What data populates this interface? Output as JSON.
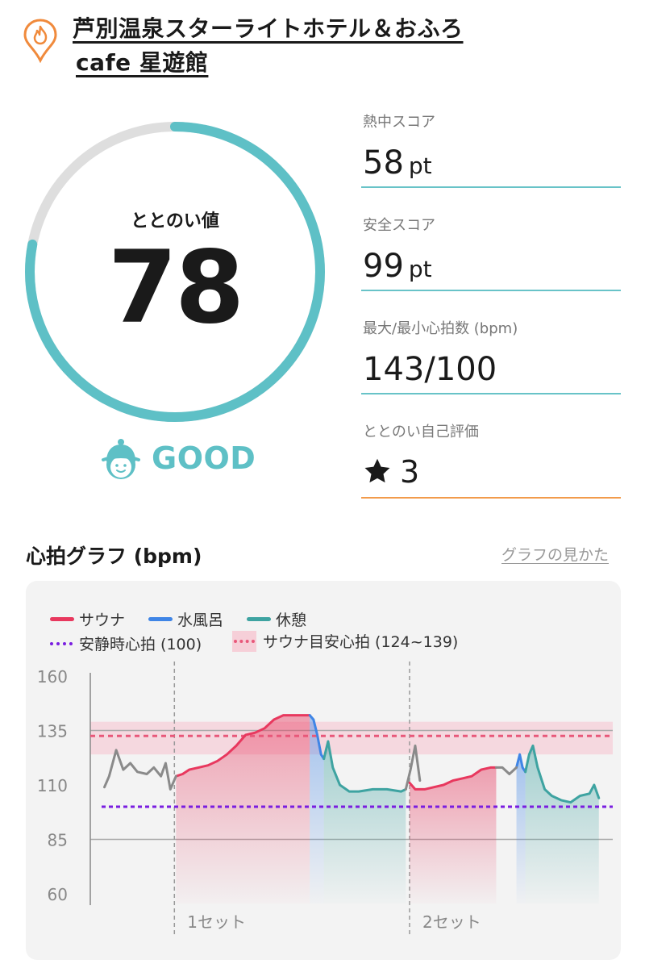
{
  "header": {
    "facility_icon": "flame-pin-icon",
    "name_line1": "芦別温泉スターライトホテル＆おふろ",
    "name_line2": "cafe 星遊館"
  },
  "score": {
    "label": "ととのい値",
    "value": "78",
    "progress_fraction": 0.78,
    "status_icon": "baby-face-icon",
    "status_text": "GOOD",
    "accent_color": "#5ec0c6"
  },
  "stats": [
    {
      "label": "熱中スコア",
      "value": "58",
      "unit": "pt"
    },
    {
      "label": "安全スコア",
      "value": "99",
      "unit": "pt"
    },
    {
      "label": "最大/最小心拍数 (bpm)",
      "value": "143/100",
      "unit": ""
    },
    {
      "label": "ととのい自己評価",
      "value": "3",
      "unit": "",
      "icon": "star-icon"
    }
  ],
  "graph": {
    "title": "心拍グラフ (bpm)",
    "help_link": "グラフの見かた",
    "legend": {
      "sauna": "サウナ",
      "water": "水風呂",
      "rest": "休憩",
      "resting_hr": "安静時心拍 (100)",
      "target_hr": "サウナ目安心拍 (124~139)"
    },
    "colors": {
      "sauna": "#e8385e",
      "water": "#3f85e6",
      "rest": "#3ea3a1",
      "pre": "#8a8a8a",
      "resting": "#7a1ee0",
      "target": "#e8587a"
    }
  },
  "chart_data": {
    "type": "line",
    "y_ticks": [
      "160",
      "135",
      "110",
      "85",
      "60"
    ],
    "ylim": [
      60,
      160
    ],
    "x_labels": [
      "1セット",
      "2セット"
    ],
    "resting_hr": 100,
    "target_range": [
      124,
      139
    ],
    "series": [
      {
        "name": "サウナ",
        "segments": [
          [
            [
              0.182,
              114
            ],
            [
              0.196,
              115
            ],
            [
              0.21,
              117
            ],
            [
              0.23,
              118
            ],
            [
              0.25,
              119
            ],
            [
              0.27,
              121
            ],
            [
              0.29,
              124
            ],
            [
              0.31,
              128
            ],
            [
              0.33,
              133
            ],
            [
              0.35,
              134
            ],
            [
              0.37,
              136
            ],
            [
              0.39,
              140
            ],
            [
              0.41,
              142
            ],
            [
              0.43,
              142
            ],
            [
              0.45,
              142
            ],
            [
              0.466,
              142
            ]
          ],
          [
            [
              0.678,
              111
            ],
            [
              0.69,
              108
            ],
            [
              0.71,
              108
            ],
            [
              0.73,
              109
            ],
            [
              0.75,
              110
            ],
            [
              0.77,
              112
            ],
            [
              0.79,
              113
            ],
            [
              0.81,
              114
            ],
            [
              0.83,
              117
            ],
            [
              0.85,
              118
            ],
            [
              0.862,
              118
            ]
          ]
        ]
      },
      {
        "name": "水風呂",
        "segments": [
          [
            [
              0.466,
              142
            ],
            [
              0.474,
              140
            ],
            [
              0.482,
              133
            ],
            [
              0.49,
              124
            ],
            [
              0.496,
              122
            ]
          ],
          [
            [
              0.905,
              118
            ],
            [
              0.912,
              124
            ],
            [
              0.918,
              118
            ],
            [
              0.924,
              116
            ]
          ]
        ]
      },
      {
        "name": "休憩",
        "segments": [
          [
            [
              0.496,
              122
            ],
            [
              0.505,
              130
            ],
            [
              0.515,
              118
            ],
            [
              0.53,
              110
            ],
            [
              0.55,
              107
            ],
            [
              0.57,
              107
            ],
            [
              0.6,
              108
            ],
            [
              0.63,
              108
            ],
            [
              0.66,
              107
            ],
            [
              0.67,
              108
            ]
          ],
          [
            [
              0.924,
              116
            ],
            [
              0.932,
              124
            ],
            [
              0.94,
              128
            ],
            [
              0.95,
              118
            ],
            [
              0.965,
              108
            ],
            [
              0.98,
              105
            ],
            [
              1.0,
              103
            ],
            [
              1.02,
              102
            ],
            [
              1.04,
              105
            ],
            [
              1.06,
              106
            ],
            [
              1.07,
              110
            ],
            [
              1.08,
              104
            ]
          ]
        ]
      },
      {
        "name": "",
        "segments": [
          [
            [
              0.03,
              109
            ],
            [
              0.04,
              114
            ],
            [
              0.055,
              126
            ],
            [
              0.07,
              117
            ],
            [
              0.085,
              120
            ],
            [
              0.1,
              116
            ],
            [
              0.12,
              115
            ],
            [
              0.135,
              118
            ],
            [
              0.15,
              114
            ],
            [
              0.16,
              120
            ],
            [
              0.17,
              108
            ],
            [
              0.182,
              114
            ]
          ],
          [
            [
              0.67,
              108
            ],
            [
              0.68,
              117
            ],
            [
              0.69,
              128
            ],
            [
              0.695,
              120
            ],
            [
              0.7,
              112
            ]
          ],
          [
            [
              0.862,
              118
            ],
            [
              0.875,
              118
            ],
            [
              0.89,
              115
            ],
            [
              0.905,
              118
            ]
          ]
        ]
      }
    ]
  }
}
